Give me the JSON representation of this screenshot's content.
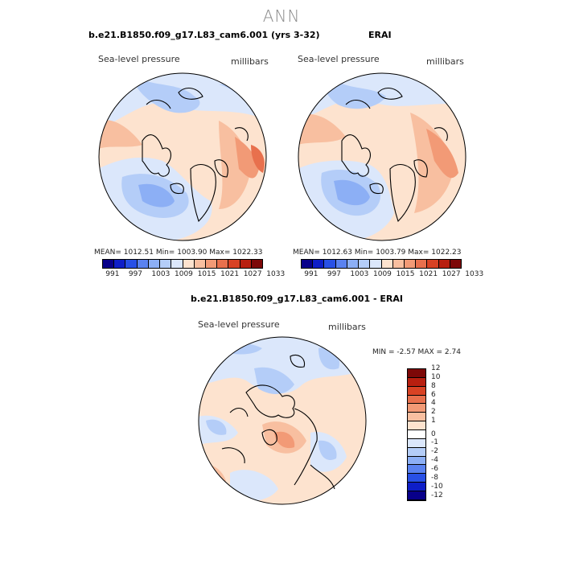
{
  "suptitle": "ANN",
  "panels": [
    {
      "title": "b.e21.B1850.f09_g17.L83_cam6.001 (yrs 3-32)",
      "variable": "Sea-level pressure",
      "units": "millibars",
      "stats": "MEAN= 1012.51   Min= 1003.90   Max= 1022.33"
    },
    {
      "title": "ERAI",
      "variable": "Sea-level pressure",
      "units": "millibars",
      "stats": "MEAN= 1012.63   Min= 1003.79   Max= 1022.23"
    },
    {
      "title": "b.e21.B1850.f09_g17.L83_cam6.001 - ERAI",
      "variable": "Sea-level pressure",
      "units": "millibars",
      "stats": "MIN =   -2.57  MAX =    2.74"
    }
  ],
  "abs_colorbar": {
    "colors": [
      "#08008a",
      "#0e1ec8",
      "#2850e6",
      "#5a82f0",
      "#8caff5",
      "#b4cdf8",
      "#dbe7fb",
      "#fde3cf",
      "#f8bfa0",
      "#f29a76",
      "#e8704d",
      "#d84224",
      "#b81f10",
      "#7d0808"
    ],
    "labels": [
      "991",
      "997",
      "1003",
      "1009",
      "1015",
      "1021",
      "1027",
      "1033"
    ]
  },
  "diff_colorbar": {
    "colors": [
      "#7d0808",
      "#b81f10",
      "#d84224",
      "#e8704d",
      "#f29a76",
      "#f8bfa0",
      "#fde3cf",
      "#ffffff",
      "#dbe7fb",
      "#b4cdf8",
      "#8caff5",
      "#5a82f0",
      "#2850e6",
      "#0e1ec8",
      "#08008a"
    ],
    "labels": [
      "12",
      "10",
      "8",
      "6",
      "4",
      "2",
      "1",
      "0",
      "-1",
      "-2",
      "-4",
      "-6",
      "-8",
      "-10",
      "-12"
    ]
  }
}
